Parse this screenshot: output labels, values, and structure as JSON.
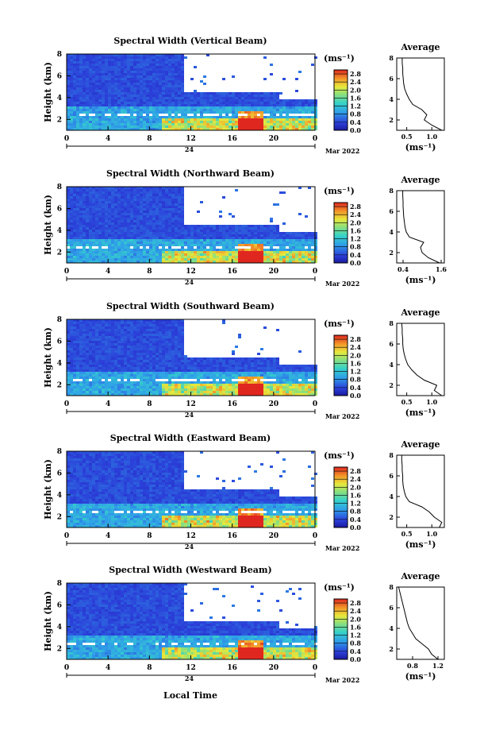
{
  "figure": {
    "x_axis_label": "Local Time",
    "date_label": "Mar 2022",
    "day_label": "24",
    "time_ticks": [
      "0",
      "4",
      "8",
      "12",
      "16",
      "20",
      "0"
    ],
    "height_ticks": [
      "2",
      "4",
      "6",
      "8"
    ],
    "height_label": "Height (km)",
    "colorbar": {
      "unit_label": "(ms⁻¹)",
      "ticks": [
        "0.0",
        "0.4",
        "0.8",
        "1.2",
        "1.6",
        "2.0",
        "2.4",
        "2.8"
      ],
      "range": [
        0.0,
        3.0
      ]
    },
    "avg_title": "Average",
    "avg_unit_label": "(ms⁻¹)"
  },
  "chart_data": [
    {
      "type": "heatmap",
      "title": "Spectral Width (Vertical Beam)",
      "x_range_hours": [
        0,
        24
      ],
      "y_range_km": [
        1,
        8
      ],
      "avg_profile": {
        "xticks": [
          "0.5",
          "1.0"
        ],
        "xlim": [
          0.3,
          1.25
        ],
        "height_km": [
          1,
          1.5,
          2,
          2.5,
          3,
          3.5,
          4,
          4.5,
          5,
          5.5,
          6,
          6.5,
          7,
          7.5,
          8
        ],
        "width_ms": [
          1.2,
          1.0,
          0.85,
          0.9,
          0.8,
          0.62,
          0.55,
          0.5,
          0.46,
          0.44,
          0.43,
          0.42,
          0.42,
          0.41,
          0.41
        ]
      }
    },
    {
      "type": "heatmap",
      "title": "Spectral Width (Northward Beam)",
      "x_range_hours": [
        0,
        24
      ],
      "y_range_km": [
        1,
        8
      ],
      "avg_profile": {
        "xticks": [
          "0.4",
          "1.6"
        ],
        "xlim": [
          0.2,
          1.7
        ],
        "height_km": [
          1,
          1.5,
          2,
          2.5,
          3,
          3.5,
          4,
          4.5,
          5,
          5.5,
          6,
          6.5,
          7,
          7.5,
          8
        ],
        "width_ms": [
          1.55,
          1.2,
          1.0,
          0.95,
          1.05,
          0.6,
          0.5,
          0.46,
          0.44,
          0.42,
          0.41,
          0.4,
          0.4,
          0.39,
          0.39
        ]
      }
    },
    {
      "type": "heatmap",
      "title": "Spectral Width (Southward Beam)",
      "x_range_hours": [
        0,
        24
      ],
      "y_range_km": [
        1,
        8
      ],
      "avg_profile": {
        "xticks": [
          "0.5",
          "1.0"
        ],
        "xlim": [
          0.3,
          1.25
        ],
        "height_km": [
          1,
          1.5,
          2,
          2.5,
          3,
          3.5,
          4,
          4.5,
          5,
          5.5,
          6,
          6.5,
          7,
          7.5,
          8
        ],
        "width_ms": [
          1.2,
          1.05,
          1.1,
          0.85,
          0.7,
          0.6,
          0.52,
          0.48,
          0.45,
          0.43,
          0.42,
          0.42,
          0.41,
          0.41,
          0.4
        ]
      }
    },
    {
      "type": "heatmap",
      "title": "Spectral Width (Eastward Beam)",
      "x_range_hours": [
        0,
        24
      ],
      "y_range_km": [
        1,
        8
      ],
      "avg_profile": {
        "xticks": [
          "0.5",
          "1.0"
        ],
        "xlim": [
          0.3,
          1.25
        ],
        "height_km": [
          1,
          1.5,
          2,
          2.5,
          3,
          3.5,
          4,
          4.5,
          5,
          5.5,
          6,
          6.5,
          7,
          7.5,
          8
        ],
        "width_ms": [
          1.15,
          1.2,
          1.05,
          0.95,
          0.8,
          0.55,
          0.48,
          0.45,
          0.43,
          0.42,
          0.42,
          0.41,
          0.41,
          0.4,
          0.4
        ]
      }
    },
    {
      "type": "heatmap",
      "title": "Spectral Width (Westward Beam)",
      "x_range_hours": [
        0,
        24
      ],
      "y_range_km": [
        1,
        8
      ],
      "avg_profile": {
        "xticks": [
          "0.8",
          "1.2"
        ],
        "xlim": [
          0.55,
          1.3
        ],
        "height_km": [
          1,
          1.5,
          2,
          2.5,
          3,
          3.5,
          4,
          4.5,
          5,
          5.5,
          6,
          6.5,
          7,
          7.5,
          8
        ],
        "width_ms": [
          1.2,
          1.1,
          1.05,
          0.95,
          0.85,
          0.8,
          0.75,
          0.72,
          0.7,
          0.68,
          0.66,
          0.64,
          0.62,
          0.6,
          0.58
        ]
      }
    }
  ]
}
